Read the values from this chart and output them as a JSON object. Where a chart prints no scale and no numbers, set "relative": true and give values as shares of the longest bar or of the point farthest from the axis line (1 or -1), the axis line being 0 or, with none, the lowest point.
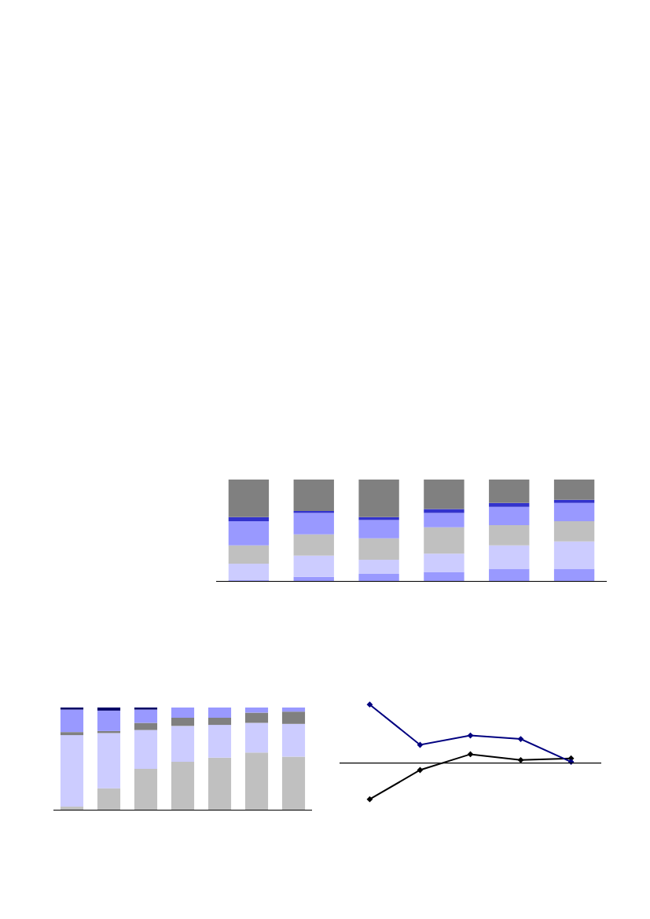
{
  "chart_data": [
    {
      "type": "bar",
      "relative": true,
      "stacked": true,
      "categories": [
        null,
        null,
        null,
        null,
        null,
        null
      ],
      "series": [
        {
          "color": "#9999ff",
          "values": [
            0.005,
            0.04,
            0.07,
            0.09,
            0.12,
            0.12
          ]
        },
        {
          "color": "#ccccff",
          "values": [
            0.165,
            0.21,
            0.14,
            0.18,
            0.23,
            0.27
          ]
        },
        {
          "color": "#c0c0c0",
          "values": [
            0.18,
            0.21,
            0.21,
            0.26,
            0.2,
            0.2
          ]
        },
        {
          "color": "#9999ff",
          "values": [
            0.24,
            0.21,
            0.18,
            0.14,
            0.18,
            0.18
          ]
        },
        {
          "color": "#3333cc",
          "values": [
            0.04,
            0.02,
            0.03,
            0.04,
            0.04,
            0.03
          ]
        },
        {
          "color": "#808080",
          "values": [
            0.37,
            0.31,
            0.37,
            0.29,
            0.23,
            0.2
          ]
        }
      ]
    },
    {
      "type": "bar",
      "relative": true,
      "stacked": true,
      "categories": [
        null,
        null,
        null,
        null,
        null,
        null,
        null
      ],
      "series": [
        {
          "color": "#c0c0c0",
          "values": [
            0.03,
            0.21,
            0.4,
            0.47,
            0.51,
            0.56,
            0.52
          ]
        },
        {
          "color": "#ccccff",
          "values": [
            0.7,
            0.54,
            0.38,
            0.35,
            0.32,
            0.29,
            0.32
          ]
        },
        {
          "color": "#808080",
          "values": [
            0.03,
            0.02,
            0.07,
            0.08,
            0.07,
            0.1,
            0.12
          ]
        },
        {
          "color": "#9999ff",
          "values": [
            0.22,
            0.2,
            0.13,
            0.1,
            0.1,
            0.05,
            0.04
          ]
        },
        {
          "color": "#000066",
          "values": [
            0.02,
            0.03,
            0.02,
            0,
            0,
            0,
            0
          ]
        }
      ]
    },
    {
      "type": "line",
      "relative": true,
      "marker": "diamond",
      "categories": [
        null,
        null,
        null,
        null,
        null
      ],
      "series": [
        {
          "color": "#000000",
          "values": [
            -0.62,
            -0.12,
            0.15,
            0.05,
            0.08
          ]
        },
        {
          "color": "#000080",
          "values": [
            1,
            0.31,
            0.47,
            0.41,
            0.02
          ]
        }
      ]
    }
  ]
}
